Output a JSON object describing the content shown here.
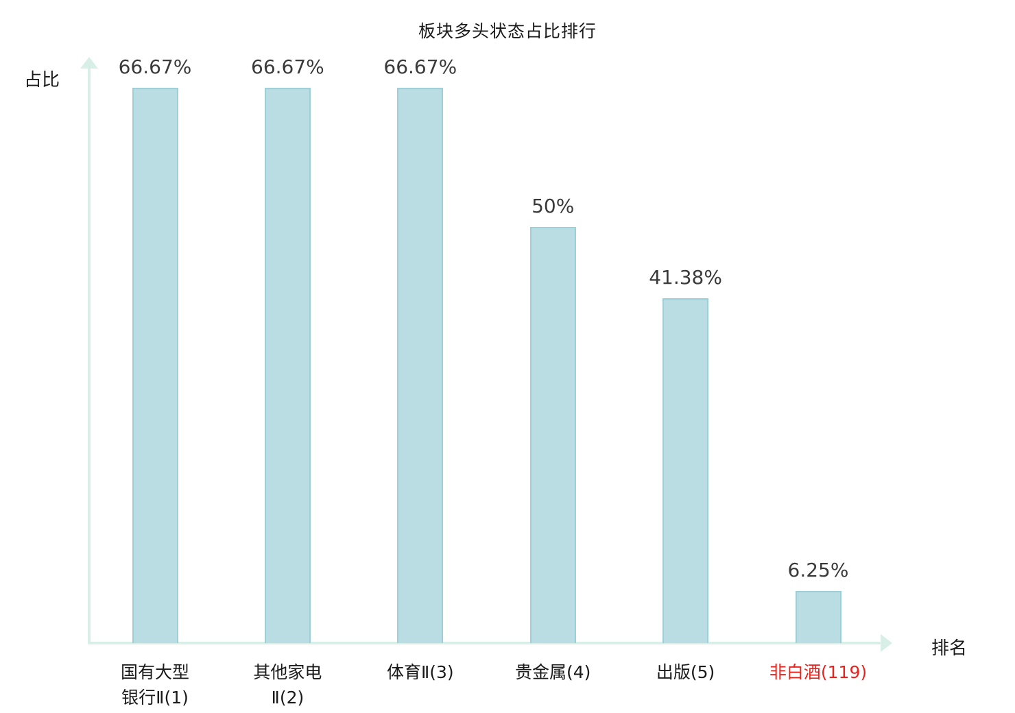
{
  "chart_data": {
    "type": "bar",
    "title": "板块多头状态占比排行",
    "ylabel": "占比",
    "xlabel": "排名",
    "categories": [
      "国有大型\n银行Ⅱ(1)",
      "其他家电\nⅡ(2)",
      "体育Ⅱ(3)",
      "贵金属(4)",
      "出版(5)",
      "非白酒(119)"
    ],
    "values": [
      66.67,
      66.67,
      66.67,
      50,
      41.38,
      6.25
    ],
    "value_labels": [
      "66.67%",
      "66.67%",
      "66.67%",
      "50%",
      "41.38%",
      "6.25%"
    ],
    "ylim": [
      0,
      72
    ],
    "grid": false,
    "legend": "none",
    "bar_color": "#b9dde3",
    "bar_border_color": "#9ccfd8",
    "axis_color": "#d8efe8",
    "value_label_color": "#3a3a3a",
    "category_label_color": "#1a1a1a",
    "highlight_index": 5,
    "highlight_color": "#e8231d"
  }
}
